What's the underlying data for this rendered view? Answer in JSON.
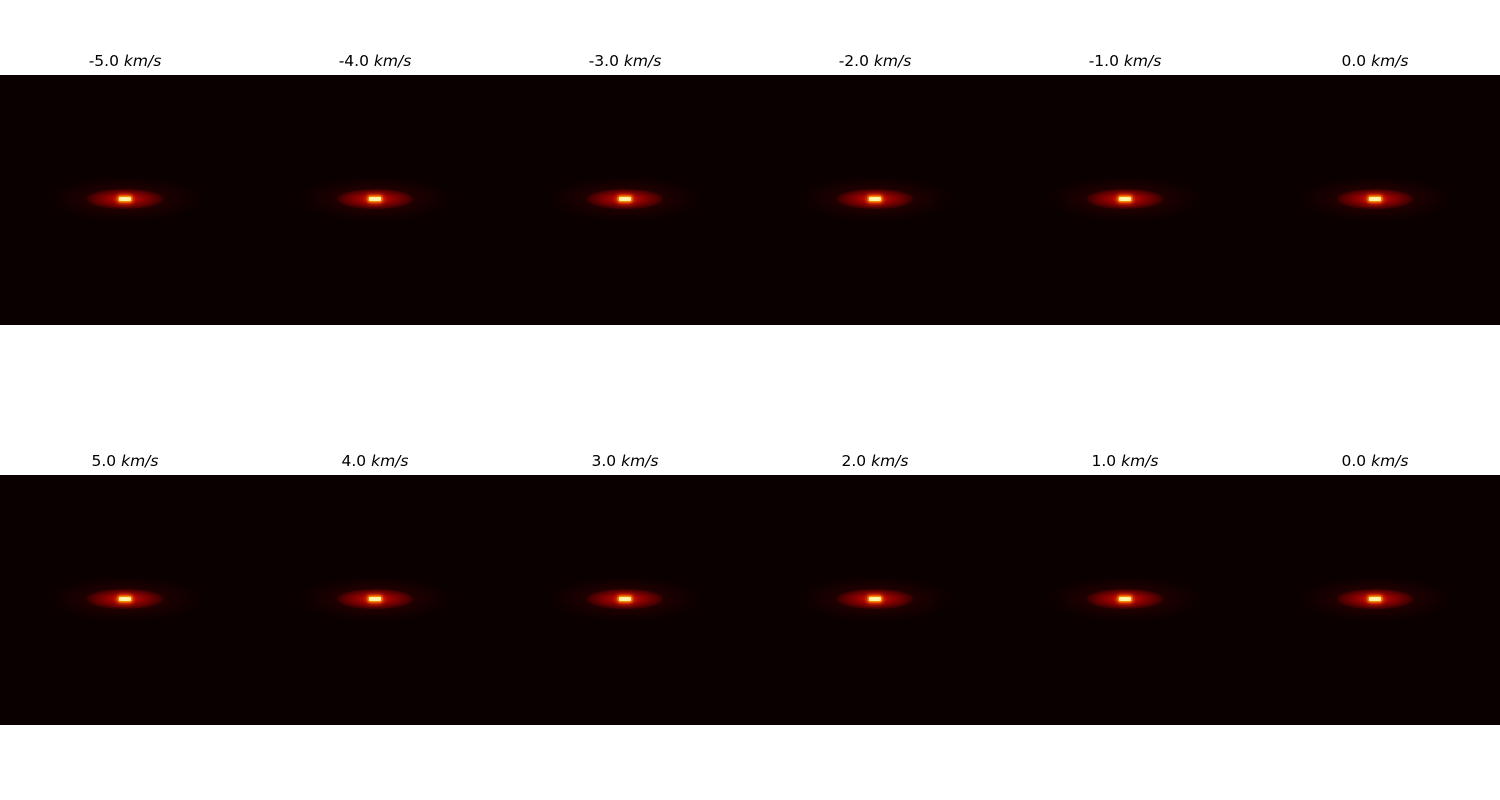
{
  "figure": {
    "unit": "km/s",
    "top_row": [
      {
        "value": "-5.0"
      },
      {
        "value": "-4.0"
      },
      {
        "value": "-3.0"
      },
      {
        "value": "-2.0"
      },
      {
        "value": "-1.0"
      },
      {
        "value": "0.0"
      }
    ],
    "bottom_row": [
      {
        "value": "5.0"
      },
      {
        "value": "4.0"
      },
      {
        "value": "3.0"
      },
      {
        "value": "2.0"
      },
      {
        "value": "1.0"
      },
      {
        "value": "0.0"
      }
    ],
    "colormap": {
      "background": "#0b0000",
      "glow": "#b00000",
      "core": "#fff3a8"
    }
  }
}
